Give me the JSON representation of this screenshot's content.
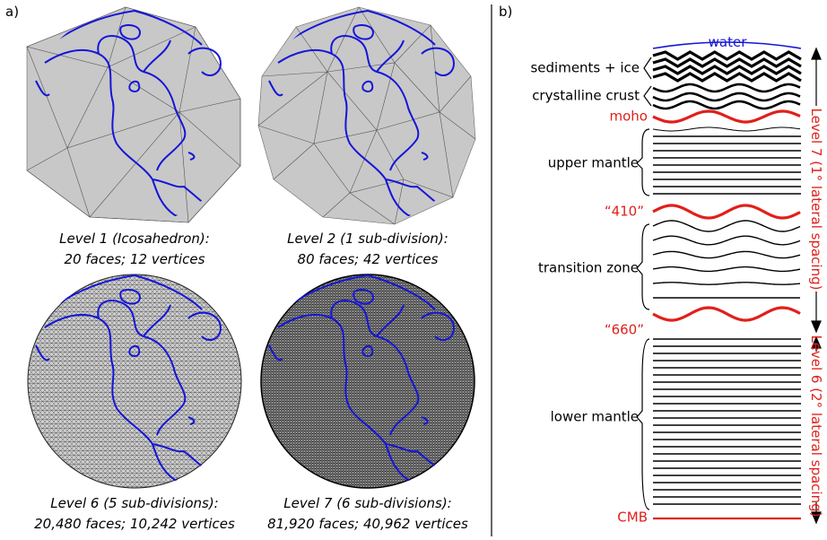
{
  "panel_a": {
    "label": "a)",
    "globes": [
      {
        "caption": [
          "Level 1 (Icosahedron):",
          "20 faces; 12 vertices"
        ]
      },
      {
        "caption": [
          "Level 2 (1 sub-division):",
          "80 faces; 42 vertices"
        ]
      },
      {
        "caption": [
          "Level 6 (5 sub-divisions):",
          "20,480 faces; 10,242 vertices"
        ]
      },
      {
        "caption": [
          "Level 7 (6 sub-divisions):",
          "81,920 faces; 40,962 vertices"
        ]
      }
    ]
  },
  "panel_b": {
    "label": "b)",
    "layers": [
      "water",
      "sediments + ice",
      "crystalline crust",
      "moho",
      "upper mantle",
      "“410”",
      "transition zone",
      "“660”",
      "lower mantle",
      "CMB"
    ],
    "resolution": [
      "Level 7 (1° lateral spacing)",
      "Level 6 (2° lateral spacing)"
    ]
  }
}
